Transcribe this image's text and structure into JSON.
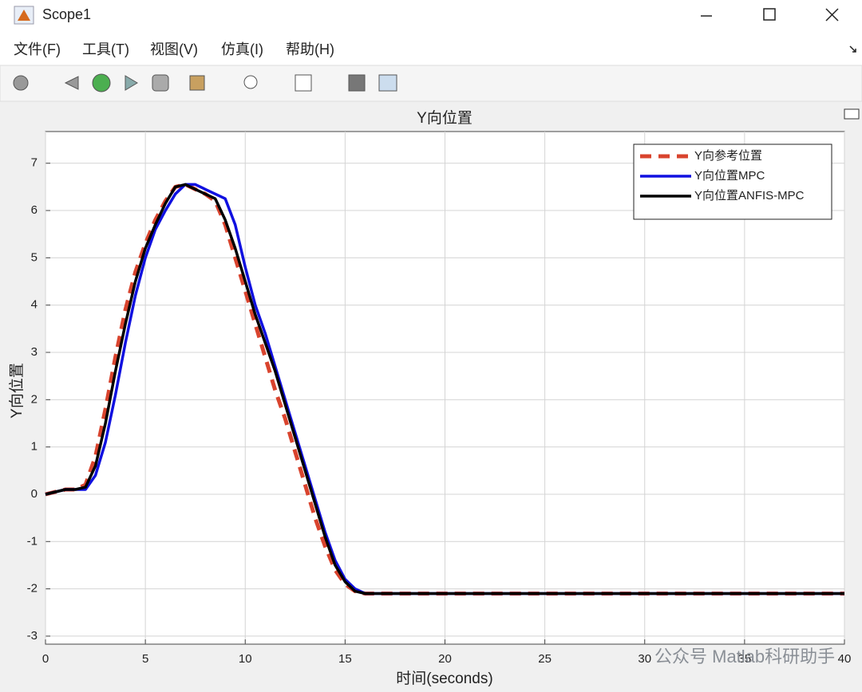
{
  "window": {
    "title": "Scope1",
    "menu": [
      "文件(F)",
      "工具(T)",
      "视图(V)",
      "仿真(I)",
      "帮助(H)"
    ]
  },
  "watermark": "公众号 Matlab科研助手",
  "chart_data": {
    "type": "line",
    "title": "Y向位置",
    "xlabel": "时间(seconds)",
    "ylabel": "Y向位置",
    "x": [
      0,
      1,
      1.5,
      2,
      2.5,
      3,
      3.5,
      4,
      4.5,
      5,
      5.5,
      6,
      6.5,
      7,
      7.5,
      8,
      8.5,
      9,
      9.5,
      10,
      10.5,
      11,
      11.5,
      12,
      12.5,
      13,
      13.5,
      14,
      14.5,
      15,
      15.5,
      16,
      40
    ],
    "series": [
      {
        "name": "Y向参考位置",
        "color": "#d9442e",
        "dashed": true,
        "values": [
          0,
          0.1,
          0.1,
          0.2,
          0.8,
          1.8,
          2.9,
          3.9,
          4.7,
          5.3,
          5.8,
          6.2,
          6.5,
          6.55,
          6.45,
          6.35,
          6.2,
          5.7,
          5.0,
          4.3,
          3.6,
          2.9,
          2.2,
          1.6,
          0.9,
          0.2,
          -0.5,
          -1.1,
          -1.6,
          -1.9,
          -2.05,
          -2.1,
          -2.1
        ]
      },
      {
        "name": "Y向位置MPC",
        "color": "#1010e0",
        "dashed": false,
        "values": [
          0,
          0.1,
          0.1,
          0.1,
          0.4,
          1.1,
          2.1,
          3.2,
          4.2,
          5.0,
          5.6,
          6.0,
          6.35,
          6.55,
          6.55,
          6.45,
          6.35,
          6.25,
          5.7,
          4.8,
          4.0,
          3.4,
          2.7,
          2.0,
          1.3,
          0.6,
          -0.1,
          -0.8,
          -1.4,
          -1.8,
          -2.0,
          -2.1,
          -2.1
        ]
      },
      {
        "name": "Y向位置ANFIS-MPC",
        "color": "#000000",
        "dashed": false,
        "values": [
          0,
          0.1,
          0.1,
          0.15,
          0.6,
          1.5,
          2.6,
          3.6,
          4.5,
          5.2,
          5.7,
          6.15,
          6.5,
          6.55,
          6.45,
          6.35,
          6.25,
          5.8,
          5.2,
          4.5,
          3.8,
          3.2,
          2.6,
          1.9,
          1.2,
          0.5,
          -0.2,
          -0.9,
          -1.5,
          -1.85,
          -2.05,
          -2.1,
          -2.1
        ]
      }
    ],
    "xlim": [
      0,
      40
    ],
    "xticks": [
      0,
      5,
      10,
      15,
      20,
      25,
      30,
      35,
      40
    ],
    "ylim": [
      -3.17,
      7.67
    ],
    "yticks": [
      -3,
      -2,
      -1,
      0,
      1,
      2,
      3,
      4,
      5,
      6,
      7
    ],
    "grid": true,
    "legend": "top-right"
  }
}
